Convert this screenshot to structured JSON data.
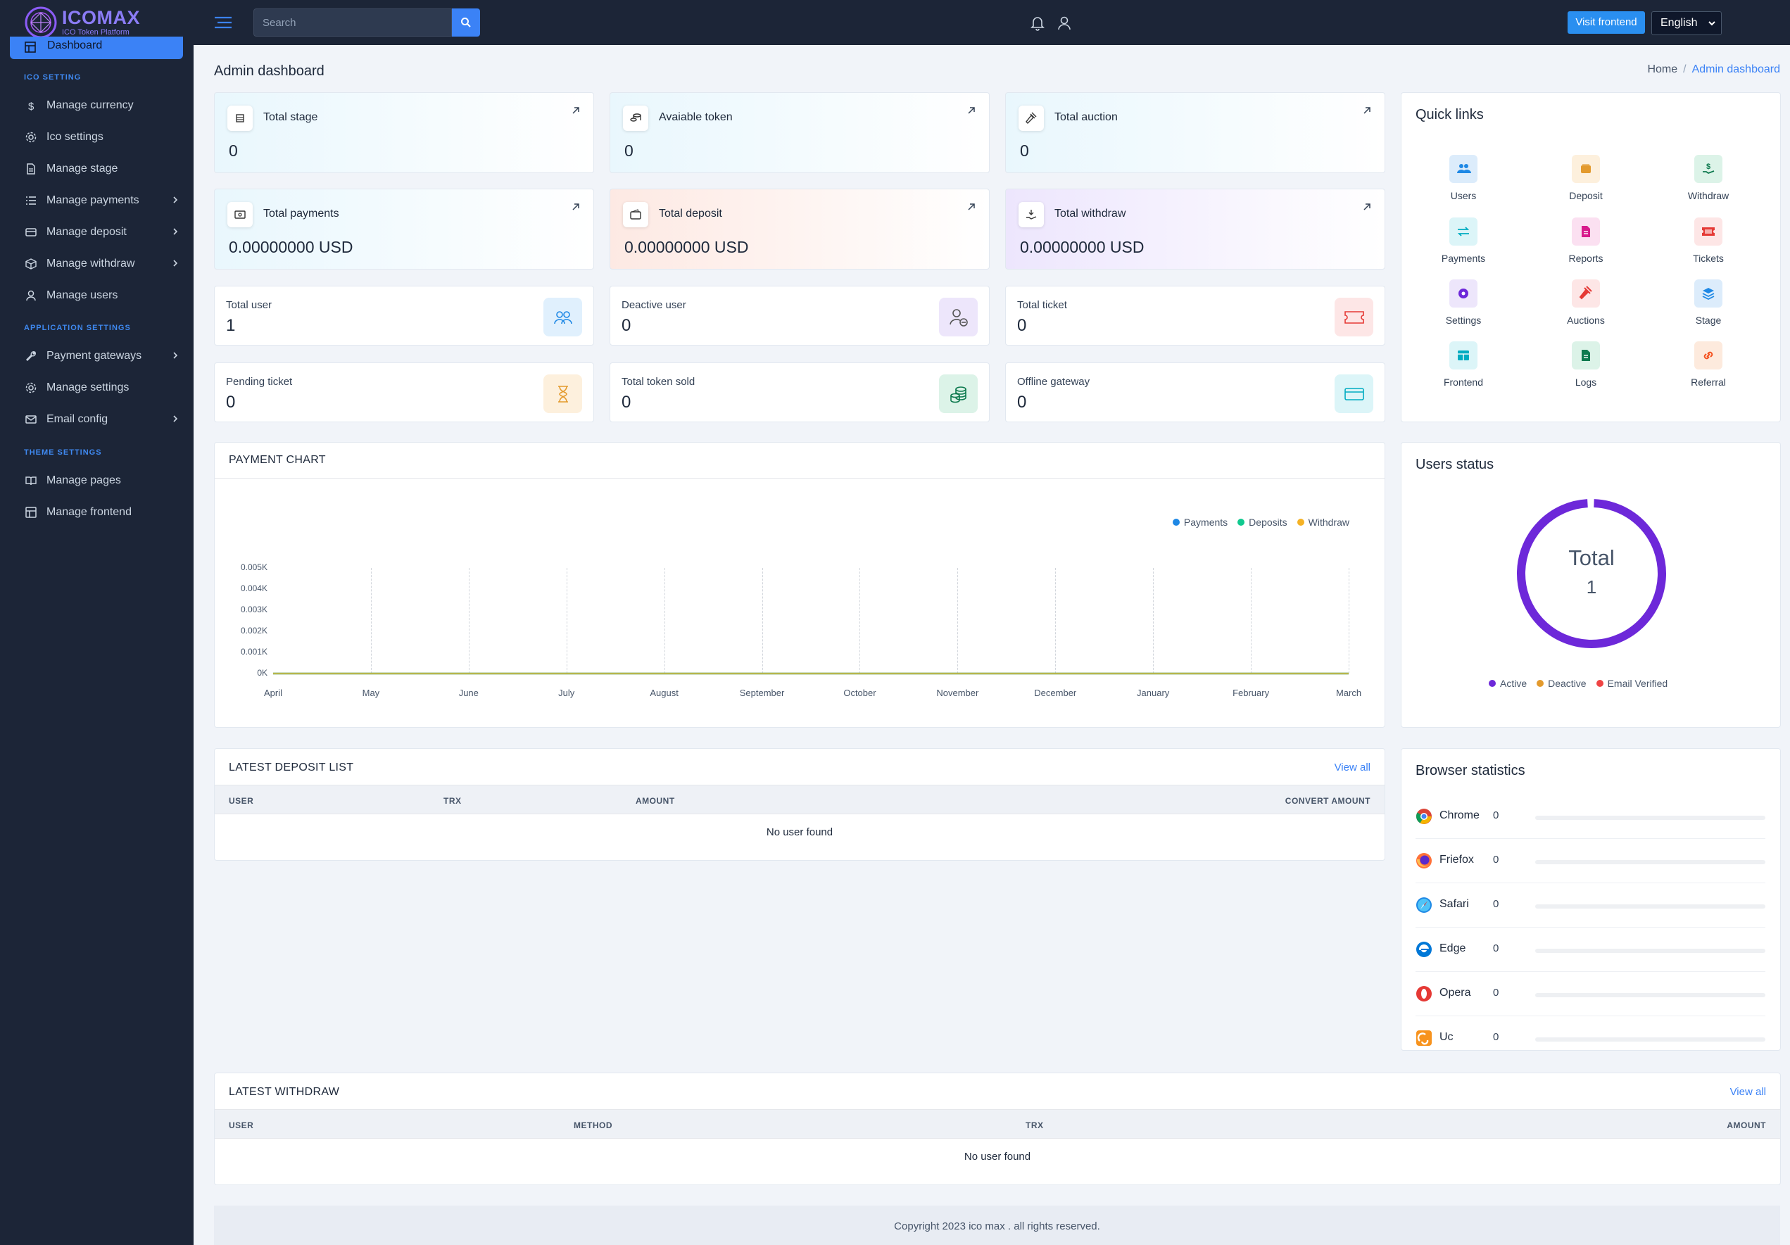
{
  "brand": {
    "name": "ICOMAX",
    "tagline": "ICO Token Platform"
  },
  "sidebar": {
    "active_item": "Dashboard",
    "sections": [
      {
        "title": "ICO SETTING",
        "items": [
          {
            "label": "Manage currency",
            "icon": "dollar-icon",
            "has_submenu": false
          },
          {
            "label": "Ico settings",
            "icon": "gear-icon",
            "has_submenu": false
          },
          {
            "label": "Manage stage",
            "icon": "document-icon",
            "has_submenu": false
          },
          {
            "label": "Manage payments",
            "icon": "list-icon",
            "has_submenu": true
          },
          {
            "label": "Manage deposit",
            "icon": "card-icon",
            "has_submenu": true
          },
          {
            "label": "Manage withdraw",
            "icon": "box-icon",
            "has_submenu": true
          },
          {
            "label": "Manage users",
            "icon": "user-icon",
            "has_submenu": false
          }
        ]
      },
      {
        "title": "APPLICATION SETTINGS",
        "items": [
          {
            "label": "Payment gateways",
            "icon": "wrench-icon",
            "has_submenu": true
          },
          {
            "label": "Manage settings",
            "icon": "gear-icon",
            "has_submenu": false
          },
          {
            "label": "Email config",
            "icon": "mail-icon",
            "has_submenu": true
          }
        ]
      },
      {
        "title": "THEME SETTINGS",
        "items": [
          {
            "label": "Manage pages",
            "icon": "book-icon",
            "has_submenu": false
          },
          {
            "label": "Manage frontend",
            "icon": "layout-icon",
            "has_submenu": false
          }
        ]
      }
    ]
  },
  "topbar": {
    "search_placeholder": "Search",
    "visit_label": "Visit frontend",
    "language": "English"
  },
  "page": {
    "title": "Admin dashboard",
    "breadcrumb": [
      "Home",
      "Admin dashboard"
    ]
  },
  "stats": [
    {
      "label": "Total stage",
      "value": "0"
    },
    {
      "label": "Avaiable token",
      "value": "0"
    },
    {
      "label": "Total auction",
      "value": "0"
    },
    {
      "label": "Total payments",
      "value": "0.00000000 USD"
    },
    {
      "label": "Total deposit",
      "value": "0.00000000 USD"
    },
    {
      "label": "Total withdraw",
      "value": "0.00000000 USD"
    }
  ],
  "mini_stats": [
    {
      "label": "Total user",
      "value": "1"
    },
    {
      "label": "Deactive user",
      "value": "0"
    },
    {
      "label": "Total ticket",
      "value": "0"
    },
    {
      "label": "Pending ticket",
      "value": "0"
    },
    {
      "label": "Total token sold",
      "value": "0"
    },
    {
      "label": "Offline gateway",
      "value": "0"
    }
  ],
  "quick_links": {
    "title": "Quick links",
    "items": [
      "Users",
      "Deposit",
      "Withdraw",
      "Payments",
      "Reports",
      "Tickets",
      "Settings",
      "Auctions",
      "Stage",
      "Frontend",
      "Logs",
      "Referral"
    ]
  },
  "payment_chart": {
    "title": "PAYMENT CHART"
  },
  "chart_data": {
    "type": "line",
    "title": "PAYMENT CHART",
    "categories": [
      "April",
      "May",
      "June",
      "July",
      "August",
      "September",
      "October",
      "November",
      "December",
      "January",
      "February",
      "March"
    ],
    "y_ticks": [
      "0.005K",
      "0.004K",
      "0.003K",
      "0.002K",
      "0.001K",
      "0K"
    ],
    "ylim": [
      0,
      0.005
    ],
    "legend_position": "top-right",
    "series": [
      {
        "name": "Payments",
        "color": "#1e88e5",
        "values": [
          0,
          0,
          0,
          0,
          0,
          0,
          0,
          0,
          0,
          0,
          0,
          0
        ]
      },
      {
        "name": "Deposits",
        "color": "#10c98f",
        "values": [
          0,
          0,
          0,
          0,
          0,
          0,
          0,
          0,
          0,
          0,
          0,
          0
        ]
      },
      {
        "name": "Withdraw",
        "color": "#f5b225",
        "values": [
          0,
          0,
          0,
          0,
          0,
          0,
          0,
          0,
          0,
          0,
          0,
          0
        ]
      }
    ]
  },
  "users_status": {
    "title": "Users status",
    "center_label": "Total",
    "center_value": "1",
    "legend": [
      {
        "name": "Active",
        "color": "#6d28d9"
      },
      {
        "name": "Deactive",
        "color": "#e39a2d"
      },
      {
        "name": "Email Verified",
        "color": "#ef4444"
      }
    ]
  },
  "deposit_list": {
    "title": "LATEST DEPOSIT LIST",
    "view_all": "View all",
    "columns": [
      "USER",
      "TRX",
      "AMOUNT",
      "CONVERT AMOUNT"
    ],
    "empty": "No user found"
  },
  "browser_stats": {
    "title": "Browser statistics",
    "items": [
      {
        "name": "Chrome",
        "value": "0",
        "icon": "chrome-icon"
      },
      {
        "name": "Friefox",
        "value": "0",
        "icon": "firefox-icon"
      },
      {
        "name": "Safari",
        "value": "0",
        "icon": "safari-icon"
      },
      {
        "name": "Edge",
        "value": "0",
        "icon": "edge-icon"
      },
      {
        "name": "Opera",
        "value": "0",
        "icon": "opera-icon"
      },
      {
        "name": "Uc",
        "value": "0",
        "icon": "uc-icon"
      }
    ]
  },
  "withdraw_list": {
    "title": "LATEST WITHDRAW",
    "view_all": "View all",
    "columns": [
      "USER",
      "METHOD",
      "TRX",
      "AMOUNT"
    ],
    "empty": "No user found"
  },
  "footer": {
    "text": "Copyright 2023 ico max . all rights reserved."
  }
}
